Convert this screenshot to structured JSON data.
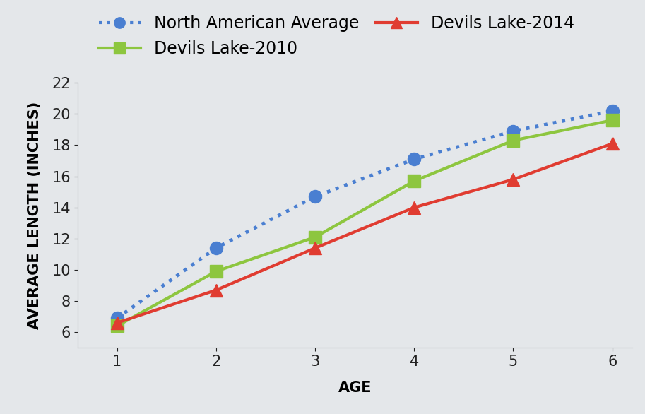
{
  "chart_data": {
    "type": "line",
    "x_label": "AGE",
    "y_label": "AVERAGE LENGTH (INCHES)",
    "x": [
      1,
      2,
      3,
      4,
      5,
      6
    ],
    "series": [
      {
        "name": "North American Average",
        "color": "#4a7fd1",
        "marker": "o",
        "line_style": "dotted",
        "values": [
          6.9,
          11.4,
          14.7,
          17.1,
          18.9,
          20.2
        ]
      },
      {
        "name": "Devils Lake-2010",
        "color": "#8dc63f",
        "marker": "s",
        "line_style": "solid",
        "values": [
          6.4,
          9.9,
          12.1,
          15.7,
          18.3,
          19.6
        ]
      },
      {
        "name": "Devils Lake-2014",
        "color": "#e03c31",
        "marker": "^",
        "line_style": "solid",
        "values": [
          6.6,
          8.7,
          11.4,
          14.0,
          15.8,
          18.1
        ]
      }
    ],
    "xlim": [
      0.6,
      6.2
    ],
    "xticks": [
      1,
      2,
      3,
      4,
      5,
      6
    ],
    "ylim": [
      5,
      22
    ],
    "yticks": [
      6,
      8,
      10,
      12,
      14,
      16,
      18,
      20,
      22
    ],
    "grid": false,
    "legend": "upper left"
  }
}
